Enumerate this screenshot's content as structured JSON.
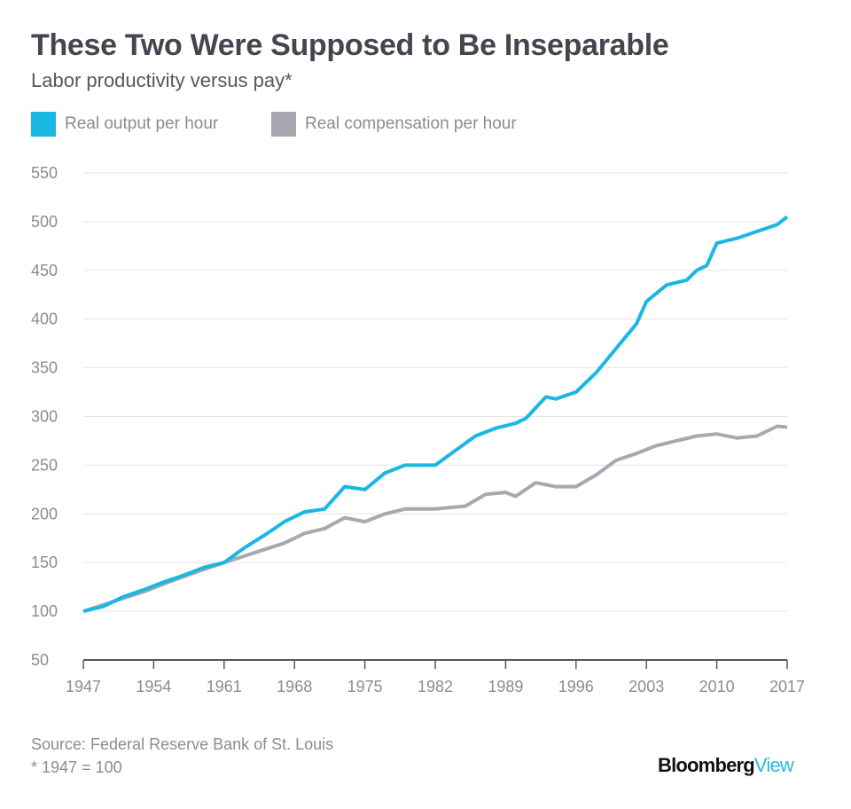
{
  "chart_data": {
    "type": "line",
    "title": "These Two Were Supposed to Be Inseparable",
    "subtitle": "Labor productivity versus pay*",
    "ylim": [
      50,
      550
    ],
    "yticks": [
      50,
      100,
      150,
      200,
      250,
      300,
      350,
      400,
      450,
      500,
      550
    ],
    "xlim": [
      1947,
      2017
    ],
    "xticks": [
      1947,
      1954,
      1961,
      1968,
      1975,
      1982,
      1989,
      1996,
      2003,
      2010,
      2017
    ],
    "grid": "horizontal",
    "legend_position": "top-left",
    "series": [
      {
        "name": "Real output per hour",
        "color": "#1ab7e3",
        "x": [
          1947,
          1949,
          1951,
          1953,
          1955,
          1957,
          1959,
          1961,
          1963,
          1965,
          1967,
          1969,
          1971,
          1973,
          1975,
          1977,
          1979,
          1981,
          1982,
          1984,
          1986,
          1988,
          1990,
          1991,
          1993,
          1994,
          1996,
          1998,
          2000,
          2002,
          2003,
          2005,
          2007,
          2008,
          2009,
          2010,
          2012,
          2014,
          2016,
          2017
        ],
        "y": [
          100,
          105,
          115,
          122,
          130,
          137,
          145,
          150,
          165,
          178,
          192,
          202,
          205,
          228,
          225,
          242,
          250,
          250,
          250,
          265,
          280,
          288,
          293,
          298,
          320,
          318,
          325,
          345,
          370,
          395,
          418,
          435,
          440,
          450,
          455,
          478,
          483,
          490,
          497,
          505
        ]
      },
      {
        "name": "Real compensation per hour",
        "color": "#a8a8b2",
        "x": [
          1947,
          1950,
          1953,
          1956,
          1959,
          1961,
          1964,
          1967,
          1969,
          1971,
          1973,
          1975,
          1977,
          1979,
          1982,
          1985,
          1987,
          1989,
          1990,
          1992,
          1994,
          1996,
          1998,
          2000,
          2002,
          2004,
          2006,
          2008,
          2010,
          2012,
          2014,
          2016,
          2017
        ],
        "y": [
          100,
          110,
          120,
          132,
          143,
          150,
          160,
          170,
          180,
          185,
          196,
          192,
          200,
          205,
          205,
          208,
          220,
          222,
          218,
          232,
          228,
          228,
          240,
          255,
          262,
          270,
          275,
          280,
          282,
          278,
          280,
          290,
          289
        ]
      }
    ]
  },
  "footer": {
    "source": "Source: Federal Reserve Bank of St. Louis",
    "note": "* 1947 = 100",
    "logo_main": "Bloomberg",
    "logo_accent": "View"
  }
}
